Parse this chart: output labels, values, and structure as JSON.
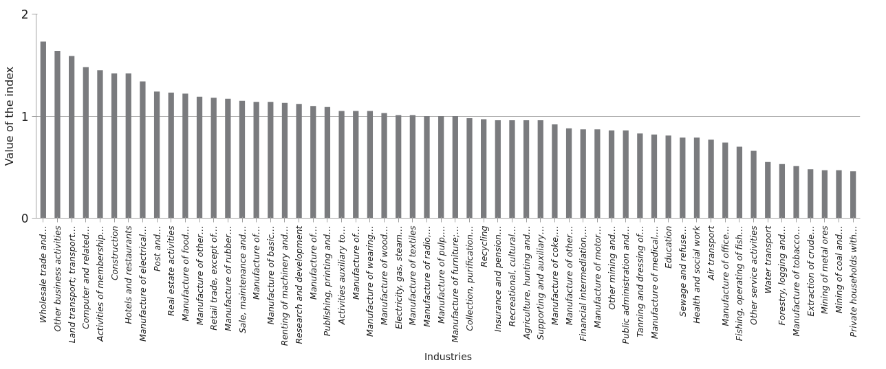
{
  "chart_data": {
    "type": "bar",
    "xlabel": "Industries",
    "ylabel": "Value of the index",
    "categories": [
      "Wholesale trade and…",
      "Other business activities",
      "Land transport; transport…",
      "Computer and related…",
      "Activities of membership…",
      "Construction",
      "Hotels and restaurants",
      "Manufacture of electrical…",
      "Post and…",
      "Real estate activities",
      "Manufacture of food…",
      "Manufacture of other…",
      "Retail trade, except of…",
      "Manufacture of rubber…",
      "Sale, maintenance and…",
      "Manufacture of…",
      "Manufacture of basic…",
      "Renting of machinery and…",
      "Research and development",
      "Manufacture of…",
      "Publishing, printing and…",
      "Activities auxiliary to…",
      "Manufacture of…",
      "Manufacture of wearing…",
      "Manufacture of wood…",
      "Electricity, gas, steam…",
      "Manufacture of textiles",
      "Manufacture of radio,…",
      "Manufacture of pulp,…",
      "Manufacture of furniture;…",
      "Collection, purification…",
      "Recycling",
      "Insurance and pension…",
      "Recreational, cultural…",
      "Agriculture, hunting and…",
      "Supporting and auxiliary…",
      "Manufacture of coke,…",
      "Manufacture of other…",
      "Financial intermediation,…",
      "Manufacture of motor…",
      "Other mining and…",
      "Public administration and…",
      "Tanning and dressing of…",
      "Manufacture of medical,…",
      "Education",
      "Sewage and refuse…",
      "Health and social work",
      "Air transport",
      "Manufacture of office…",
      "Fishing, operating of fish…",
      "Other service activities",
      "Water transport",
      "Forestry, logging and…",
      "Manufacture of tobacco…",
      "Extraction of crude…",
      "Mining of metal ores",
      "Mining of coal and…",
      "Private households with…"
    ],
    "values": [
      1.73,
      1.64,
      1.59,
      1.48,
      1.45,
      1.42,
      1.42,
      1.34,
      1.24,
      1.23,
      1.22,
      1.19,
      1.18,
      1.17,
      1.15,
      1.14,
      1.14,
      1.13,
      1.12,
      1.1,
      1.09,
      1.05,
      1.05,
      1.05,
      1.03,
      1.01,
      1.01,
      1.0,
      1.0,
      1.0,
      0.98,
      0.97,
      0.96,
      0.96,
      0.96,
      0.96,
      0.92,
      0.88,
      0.87,
      0.87,
      0.86,
      0.86,
      0.83,
      0.82,
      0.81,
      0.79,
      0.79,
      0.77,
      0.74,
      0.7,
      0.66,
      0.55,
      0.53,
      0.51,
      0.48,
      0.47,
      0.47,
      0.46
    ],
    "color": "#7a7b7e",
    "ylim": [
      0,
      2
    ],
    "yticks": [
      0,
      1,
      2
    ],
    "grid": "y"
  }
}
